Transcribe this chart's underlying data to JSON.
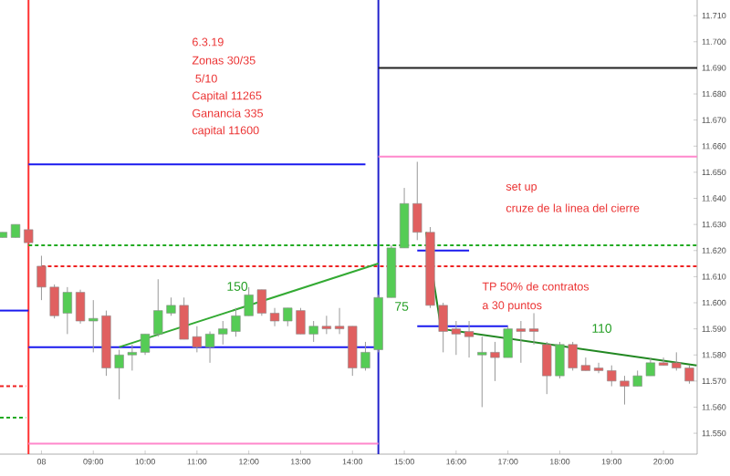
{
  "chart_data": {
    "type": "candlestick",
    "x": [
      7.25,
      7.5,
      7.75,
      8,
      8.25,
      8.5,
      8.75,
      9,
      9.25,
      9.5,
      9.75,
      10,
      10.25,
      10.5,
      10.75,
      11,
      11.25,
      11.5,
      11.75,
      12,
      12.25,
      12.5,
      12.75,
      13,
      13.25,
      13.5,
      13.75,
      14,
      14.25,
      14.5,
      14.75,
      15,
      15.25,
      15.5,
      15.75,
      16,
      16.25,
      16.5,
      16.75,
      17,
      17.25,
      17.5,
      17.75,
      18,
      18.25,
      18.5,
      18.75,
      19,
      19.25,
      19.5,
      19.75,
      20,
      20.25,
      20.5
    ],
    "ohlc": [
      [
        11625,
        11627,
        11625,
        11627
      ],
      [
        11625,
        11630,
        11625,
        11630
      ],
      [
        11628,
        11628,
        11623,
        11623
      ],
      [
        11614,
        11618,
        11601,
        11606
      ],
      [
        11606,
        11607,
        11594,
        11595
      ],
      [
        11596,
        11606,
        11588,
        11604
      ],
      [
        11604,
        11605,
        11592,
        11593
      ],
      [
        11593,
        11601,
        11581,
        11594
      ],
      [
        11595,
        11597,
        11572,
        11575
      ],
      [
        11575,
        11582,
        11563,
        11580
      ],
      [
        11580,
        11584,
        11574,
        11581
      ],
      [
        11581,
        11588,
        11580,
        11588
      ],
      [
        11588,
        11609,
        11587,
        11597
      ],
      [
        11596,
        11602,
        11595,
        11599
      ],
      [
        11599,
        11602,
        11586,
        11586
      ],
      [
        11587,
        11591,
        11581,
        11583
      ],
      [
        11583,
        11589,
        11577,
        11588
      ],
      [
        11588,
        11593,
        11584,
        11590
      ],
      [
        11589,
        11598,
        11587,
        11595
      ],
      [
        11595,
        11606,
        11595,
        11603
      ],
      [
        11605,
        11605,
        11595,
        11596
      ],
      [
        11596,
        11598,
        11591,
        11593
      ],
      [
        11593,
        11598,
        11591,
        11598
      ],
      [
        11597,
        11598,
        11588,
        11588
      ],
      [
        11588,
        11593,
        11585,
        11591
      ],
      [
        11591,
        11595,
        11588,
        11590
      ],
      [
        11591,
        11598,
        11588,
        11590
      ],
      [
        11591,
        11591,
        11572,
        11575
      ],
      [
        11575,
        11585,
        11574,
        11581
      ],
      [
        11582,
        11603,
        11581,
        11602
      ],
      [
        11602,
        11622,
        11602,
        11621
      ],
      [
        11621,
        11644,
        11621,
        11638
      ],
      [
        11638,
        11654,
        11624,
        11627
      ],
      [
        11627,
        11629,
        11598,
        11599
      ],
      [
        11599,
        11600,
        11581,
        11589
      ],
      [
        11590,
        11593,
        11580,
        11588
      ],
      [
        11589,
        11593,
        11579,
        11587
      ],
      [
        11580,
        11587,
        11560,
        11581
      ],
      [
        11581,
        11585,
        11570,
        11579
      ],
      [
        11579,
        11591,
        11579,
        11590
      ],
      [
        11590,
        11593,
        11577,
        11589
      ],
      [
        11590,
        11596,
        11584,
        11589
      ],
      [
        11584,
        11585,
        11565,
        11572
      ],
      [
        11572,
        11585,
        11571,
        11584
      ],
      [
        11584,
        11585,
        11574,
        11575
      ],
      [
        11576,
        11579,
        11574,
        11574
      ],
      [
        11575,
        11577,
        11573,
        11574
      ],
      [
        11574,
        11576,
        11568,
        11570
      ],
      [
        11570,
        11572,
        11561,
        11568
      ],
      [
        11568,
        11574,
        11568,
        11572
      ],
      [
        11572,
        11579,
        11572,
        11577
      ],
      [
        11577,
        11579,
        11576,
        11576
      ],
      [
        11577,
        11581,
        11574,
        11575
      ],
      [
        11575,
        11576,
        11569,
        11570
      ]
    ],
    "colors": [
      "#55cc55",
      "#55cc55",
      "#e06060",
      "#e06060",
      "#e06060",
      "#55cc55",
      "#e06060",
      "#55cc55",
      "#e06060",
      "#55cc55",
      "#55cc55",
      "#55cc55",
      "#55cc55",
      "#55cc55",
      "#e06060",
      "#e06060",
      "#55cc55",
      "#55cc55",
      "#55cc55",
      "#55cc55",
      "#e06060",
      "#e06060",
      "#55cc55",
      "#e06060",
      "#55cc55",
      "#e06060",
      "#e06060",
      "#e06060",
      "#55cc55",
      "#55cc55",
      "#55cc55",
      "#55cc55",
      "#e06060",
      "#e06060",
      "#e06060",
      "#e06060",
      "#e06060",
      "#55cc55",
      "#e06060",
      "#55cc55",
      "#e06060",
      "#e06060",
      "#e06060",
      "#55cc55",
      "#e06060",
      "#e06060",
      "#e06060",
      "#e06060",
      "#e06060",
      "#55cc55",
      "#55cc55",
      "#e06060",
      "#e06060",
      "#e06060"
    ],
    "series": [
      {
        "type": "line",
        "color": "#1a1aee",
        "x": [
          7.75,
          14.25
        ],
        "values": [
          11653,
          11653
        ]
      },
      {
        "type": "line",
        "color": "#1a1aee",
        "x": [
          7.75,
          14.5
        ],
        "values": [
          11583,
          11583
        ]
      },
      {
        "type": "line",
        "color": "#1a1aee",
        "x": [
          7.2,
          7.75
        ],
        "values": [
          11597,
          11597
        ]
      },
      {
        "type": "line",
        "color": "#22aa22",
        "line_style": "dashed",
        "x": [
          7.75,
          20.65
        ],
        "values": [
          11622,
          11622
        ]
      },
      {
        "type": "line",
        "color": "#22aa22",
        "line_style": "dashed",
        "x": [
          7.2,
          7.7
        ],
        "values": [
          11556,
          11556
        ]
      },
      {
        "type": "line",
        "color": "#ee2222",
        "line_style": "dashed",
        "x": [
          8,
          20.65
        ],
        "values": [
          11614,
          11614
        ]
      },
      {
        "type": "line",
        "color": "#ee2222",
        "line_style": "dashed",
        "x": [
          7.2,
          7.7
        ],
        "values": [
          11568,
          11568
        ]
      },
      {
        "type": "line",
        "color": "#ff88cc",
        "x": [
          7.75,
          14.5
        ],
        "values": [
          11546,
          11546
        ]
      },
      {
        "type": "line",
        "color": "#ff88cc",
        "x": [
          14.5,
          20.65
        ],
        "values": [
          11656,
          11656
        ]
      },
      {
        "type": "line",
        "color": "#222222",
        "x": [
          14.5,
          20.65
        ],
        "values": [
          11690,
          11690
        ]
      },
      {
        "type": "line",
        "color": "#33aa33",
        "x": [
          9.5,
          14.5
        ],
        "values": [
          11583,
          11615
        ]
      },
      {
        "type": "line",
        "color": "#228822",
        "x": [
          15.42,
          15.71,
          20.64
        ],
        "values": [
          11627,
          11590,
          11576
        ]
      },
      {
        "type": "line",
        "color": "#1a1aee",
        "x": [
          15.25,
          16.25
        ],
        "values": [
          11620,
          11620
        ]
      },
      {
        "type": "line",
        "color": "#1a1aee",
        "x": [
          15.25,
          17
        ],
        "values": [
          11591,
          11591
        ]
      }
    ],
    "ref_lines": [
      {
        "axis": "x",
        "value": 7.75,
        "color": "#ff3333"
      },
      {
        "axis": "x",
        "value": 14.5,
        "color": "#2222cc"
      }
    ],
    "annotations": [
      "6.3.19",
      "Zonas 30/35",
      " 5/10",
      "Capital 11265",
      "Ganancia 335",
      "capital 11600",
      "set up",
      "cruze de la linea del cierre",
      "TP 50% de contratos",
      "a 30 puntos",
      "150",
      "75",
      "110"
    ],
    "xlim": [
      7.2,
      20.65
    ],
    "ylim": [
      11542,
      11716
    ],
    "xticks": [
      {
        "value": 8,
        "label": "08"
      },
      {
        "value": 9,
        "label": "09:00"
      },
      {
        "value": 10,
        "label": "10:00"
      },
      {
        "value": 11,
        "label": "11:00"
      },
      {
        "value": 12,
        "label": "12:00"
      },
      {
        "value": 13,
        "label": "13:00"
      },
      {
        "value": 14,
        "label": "14:00"
      },
      {
        "value": 15,
        "label": "15:00"
      },
      {
        "value": 16,
        "label": "16:00"
      },
      {
        "value": 17,
        "label": "17:00"
      },
      {
        "value": 18,
        "label": "18:00"
      },
      {
        "value": 19,
        "label": "19:00"
      },
      {
        "value": 20,
        "label": "20:00"
      }
    ],
    "yticks": [
      {
        "value": 11550,
        "label": "11.550"
      },
      {
        "value": 11560,
        "label": "11.560"
      },
      {
        "value": 11570,
        "label": "11.570"
      },
      {
        "value": 11580,
        "label": "11.580"
      },
      {
        "value": 11590,
        "label": "11.590"
      },
      {
        "value": 11600,
        "label": "11.600"
      },
      {
        "value": 11610,
        "label": "11.610"
      },
      {
        "value": 11620,
        "label": "11.620"
      },
      {
        "value": 11630,
        "label": "11.630"
      },
      {
        "value": 11640,
        "label": "11.640"
      },
      {
        "value": 11650,
        "label": "11.650"
      },
      {
        "value": 11660,
        "label": "11.660"
      },
      {
        "value": 11670,
        "label": "11.670"
      },
      {
        "value": 11680,
        "label": "11.680"
      },
      {
        "value": 11690,
        "label": "11.690"
      },
      {
        "value": 11700,
        "label": "11.700"
      },
      {
        "value": 11710,
        "label": "11.710"
      }
    ]
  }
}
